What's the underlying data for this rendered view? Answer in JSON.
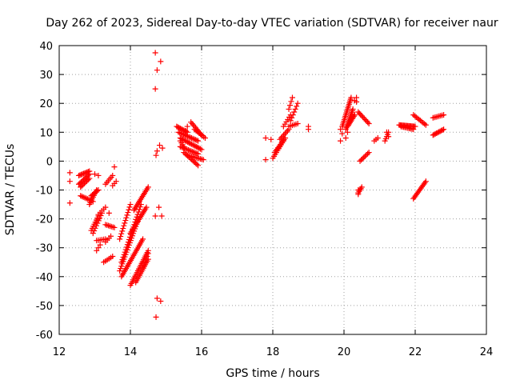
{
  "chart_data": {
    "type": "scatter",
    "title": "Day 262 of 2023, Sidereal Day-to-day VTEC variation (SDTVAR) for receiver naur",
    "xlabel": "GPS time / hours",
    "ylabel": "SDTVAR / TECUs",
    "xlim": [
      12,
      24
    ],
    "ylim": [
      -60,
      40
    ],
    "xticks": [
      "12",
      "14",
      "16",
      "18",
      "20",
      "22",
      "24"
    ],
    "yticks": [
      "40",
      "30",
      "20",
      "10",
      "0",
      "-10",
      "-20",
      "-30",
      "-40",
      "-50",
      "-60"
    ],
    "grid": true,
    "marker": "+",
    "color": "#ff0000",
    "segments": [
      {
        "x0": 12.55,
        "y0": -5.0,
        "x1": 12.85,
        "y1": -3.5,
        "n": 10
      },
      {
        "x0": 12.55,
        "y0": -8.0,
        "x1": 12.85,
        "y1": -4.5,
        "n": 10
      },
      {
        "x0": 12.6,
        "y0": -9.0,
        "x1": 12.85,
        "y1": -6.0,
        "n": 8
      },
      {
        "x0": 12.6,
        "y0": -12.0,
        "x1": 12.95,
        "y1": -14.0,
        "n": 10
      },
      {
        "x0": 12.9,
        "y0": -12.0,
        "x1": 13.1,
        "y1": -10.0,
        "n": 7
      },
      {
        "x0": 12.85,
        "y0": -15.0,
        "x1": 13.05,
        "y1": -10.0,
        "n": 9
      },
      {
        "x0": 12.9,
        "y0": -24.0,
        "x1": 13.1,
        "y1": -19.0,
        "n": 8
      },
      {
        "x0": 12.95,
        "y0": -25.0,
        "x1": 13.2,
        "y1": -18.0,
        "n": 9
      },
      {
        "x0": 13.1,
        "y0": -18.5,
        "x1": 13.3,
        "y1": -16.0,
        "n": 5
      },
      {
        "x0": 13.05,
        "y0": -31.0,
        "x1": 13.15,
        "y1": -29.0,
        "n": 3
      },
      {
        "x0": 13.05,
        "y0": -27.5,
        "x1": 13.3,
        "y1": -27.0,
        "n": 6
      },
      {
        "x0": 13.25,
        "y0": -35.0,
        "x1": 13.5,
        "y1": -33.0,
        "n": 6
      },
      {
        "x0": 13.3,
        "y0": -22.0,
        "x1": 13.55,
        "y1": -23.0,
        "n": 7
      },
      {
        "x0": 13.3,
        "y0": -28.0,
        "x1": 13.45,
        "y1": -26.0,
        "n": 4
      },
      {
        "x0": 13.3,
        "y0": -8.0,
        "x1": 13.5,
        "y1": -5.0,
        "n": 6
      },
      {
        "x0": 13.5,
        "y0": -8.5,
        "x1": 13.6,
        "y1": -7.0,
        "n": 3
      },
      {
        "x0": 13.7,
        "y0": -38.0,
        "x1": 14.2,
        "y1": -21.0,
        "n": 22
      },
      {
        "x0": 13.75,
        "y0": -35.0,
        "x1": 14.3,
        "y1": -15.0,
        "n": 24
      },
      {
        "x0": 13.7,
        "y0": -27.0,
        "x1": 14.0,
        "y1": -15.0,
        "n": 14
      },
      {
        "x0": 14.0,
        "y0": -25.0,
        "x1": 14.45,
        "y1": -16.0,
        "n": 18
      },
      {
        "x0": 14.1,
        "y0": -17.0,
        "x1": 14.5,
        "y1": -9.0,
        "n": 16
      },
      {
        "x0": 13.75,
        "y0": -40.0,
        "x1": 14.35,
        "y1": -27.0,
        "n": 24
      },
      {
        "x0": 14.0,
        "y0": -43.0,
        "x1": 14.5,
        "y1": -31.0,
        "n": 20
      },
      {
        "x0": 14.15,
        "y0": -42.0,
        "x1": 14.5,
        "y1": -34.0,
        "n": 14
      },
      {
        "x0": 14.35,
        "y0": -37.0,
        "x1": 14.5,
        "y1": -32.0,
        "n": 6
      },
      {
        "x0": 15.3,
        "y0": 12.0,
        "x1": 15.6,
        "y1": 10.0,
        "n": 10
      },
      {
        "x0": 15.35,
        "y0": 10.0,
        "x1": 15.9,
        "y1": 7.0,
        "n": 16
      },
      {
        "x0": 15.4,
        "y0": 8.0,
        "x1": 16.0,
        "y1": 4.0,
        "n": 18
      },
      {
        "x0": 15.4,
        "y0": 5.0,
        "x1": 15.9,
        "y1": 2.5,
        "n": 14
      },
      {
        "x0": 15.5,
        "y0": 3.0,
        "x1": 15.9,
        "y1": -1.5,
        "n": 12
      },
      {
        "x0": 15.6,
        "y0": 2.0,
        "x1": 16.05,
        "y1": 0.5,
        "n": 12
      },
      {
        "x0": 15.7,
        "y0": 13.5,
        "x1": 16.0,
        "y1": 9.0,
        "n": 10
      },
      {
        "x0": 15.8,
        "y0": 11.0,
        "x1": 16.1,
        "y1": 8.0,
        "n": 8
      },
      {
        "x0": 15.4,
        "y0": 7.0,
        "x1": 15.5,
        "y1": 5.0,
        "n": 4
      },
      {
        "x0": 18.0,
        "y0": 1.0,
        "x1": 18.3,
        "y1": 7.0,
        "n": 10
      },
      {
        "x0": 18.05,
        "y0": 3.0,
        "x1": 18.35,
        "y1": 8.0,
        "n": 10
      },
      {
        "x0": 18.2,
        "y0": 7.5,
        "x1": 18.45,
        "y1": 11.0,
        "n": 8
      },
      {
        "x0": 18.3,
        "y0": 12.0,
        "x1": 18.5,
        "y1": 16.0,
        "n": 6
      },
      {
        "x0": 18.45,
        "y0": 18.0,
        "x1": 18.55,
        "y1": 22.0,
        "n": 4
      },
      {
        "x0": 18.5,
        "y0": 14.0,
        "x1": 18.7,
        "y1": 20.0,
        "n": 7
      },
      {
        "x0": 18.45,
        "y0": 12.0,
        "x1": 18.7,
        "y1": 13.0,
        "n": 6
      },
      {
        "x0": 19.95,
        "y0": 12.0,
        "x1": 20.2,
        "y1": 22.0,
        "n": 18
      },
      {
        "x0": 20.05,
        "y0": 11.0,
        "x1": 20.25,
        "y1": 18.0,
        "n": 14
      },
      {
        "x0": 20.1,
        "y0": 12.0,
        "x1": 20.3,
        "y1": 16.0,
        "n": 10
      },
      {
        "x0": 20.3,
        "y0": 21.0,
        "x1": 20.35,
        "y1": 22.0,
        "n": 2
      },
      {
        "x0": 20.4,
        "y0": 17.0,
        "x1": 20.7,
        "y1": 13.0,
        "n": 10
      },
      {
        "x0": 20.45,
        "y0": 0.0,
        "x1": 20.7,
        "y1": 3.0,
        "n": 8
      },
      {
        "x0": 20.4,
        "y0": -11.0,
        "x1": 20.5,
        "y1": -9.0,
        "n": 5
      },
      {
        "x0": 20.85,
        "y0": 7.0,
        "x1": 20.95,
        "y1": 8.0,
        "n": 3
      },
      {
        "x0": 21.15,
        "y0": 7.0,
        "x1": 21.25,
        "y1": 10.0,
        "n": 5
      },
      {
        "x0": 21.55,
        "y0": 12.5,
        "x1": 22.0,
        "y1": 12.0,
        "n": 16
      },
      {
        "x0": 21.6,
        "y0": 12.0,
        "x1": 21.95,
        "y1": 11.0,
        "n": 10
      },
      {
        "x0": 21.95,
        "y0": -13.0,
        "x1": 22.3,
        "y1": -7.0,
        "n": 14
      },
      {
        "x0": 21.95,
        "y0": 16.0,
        "x1": 22.3,
        "y1": 12.5,
        "n": 10
      },
      {
        "x0": 22.5,
        "y0": 9.0,
        "x1": 22.8,
        "y1": 11.0,
        "n": 10
      },
      {
        "x0": 22.5,
        "y0": 15.0,
        "x1": 22.8,
        "y1": 16.0,
        "n": 8
      }
    ],
    "points": [
      [
        12.3,
        -4.0
      ],
      [
        12.3,
        -7.0
      ],
      [
        12.3,
        -14.5
      ],
      [
        13.0,
        -4.5
      ],
      [
        13.1,
        -5.0
      ],
      [
        13.1,
        -20.0
      ],
      [
        13.55,
        -2.0
      ],
      [
        13.4,
        -18.0
      ],
      [
        14.7,
        37.5
      ],
      [
        14.75,
        31.5
      ],
      [
        14.85,
        34.5
      ],
      [
        14.7,
        25.0
      ],
      [
        14.72,
        2.0
      ],
      [
        14.75,
        3.5
      ],
      [
        14.82,
        5.5
      ],
      [
        14.9,
        4.5
      ],
      [
        14.7,
        -19.0
      ],
      [
        14.88,
        -19.0
      ],
      [
        14.8,
        -16.0
      ],
      [
        14.75,
        -47.5
      ],
      [
        14.85,
        -48.5
      ],
      [
        14.72,
        -54.0
      ],
      [
        15.6,
        12.0
      ],
      [
        15.55,
        10.5
      ],
      [
        17.8,
        8.0
      ],
      [
        17.8,
        0.5
      ],
      [
        17.95,
        7.5
      ],
      [
        19.0,
        11.0
      ],
      [
        19.0,
        12.0
      ],
      [
        19.9,
        7.0
      ],
      [
        19.9,
        11.0
      ],
      [
        19.95,
        9.5
      ],
      [
        20.05,
        8.0
      ],
      [
        20.1,
        10.0
      ],
      [
        20.35,
        20.5
      ],
      [
        20.4,
        -10.0
      ],
      [
        20.4,
        -11.5
      ],
      [
        21.2,
        10.0
      ],
      [
        21.25,
        8.5
      ]
    ]
  }
}
